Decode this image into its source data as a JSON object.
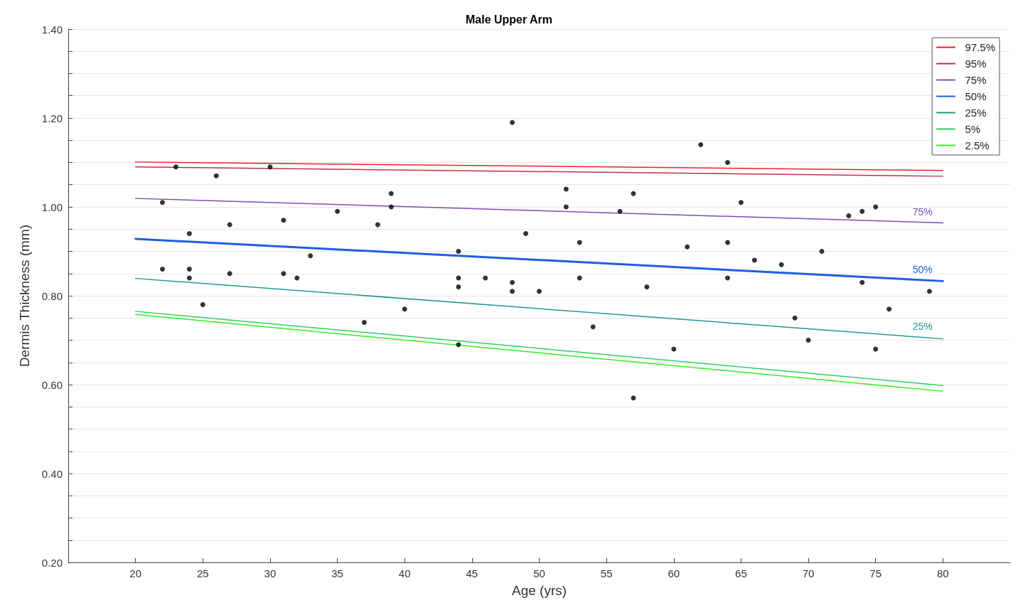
{
  "chart_data": {
    "type": "line",
    "title": "Male Upper Arm",
    "xlabel": "Age (yrs)",
    "ylabel": "Dermis Thickness (mm)",
    "xlim": [
      15,
      85
    ],
    "xticks": [
      20,
      25,
      30,
      35,
      40,
      45,
      50,
      55,
      60,
      65,
      70,
      75,
      80
    ],
    "ylim": [
      0.2,
      1.4
    ],
    "yticks": [
      {
        "value": 0.2,
        "label": "0.20"
      },
      {
        "value": 0.25,
        "label": null
      },
      {
        "value": 0.3,
        "label": null
      },
      {
        "value": 0.35,
        "label": null
      },
      {
        "value": 0.4,
        "label": "0.40"
      },
      {
        "value": 0.45,
        "label": null
      },
      {
        "value": 0.5,
        "label": null
      },
      {
        "value": 0.55,
        "label": null
      },
      {
        "value": 0.6,
        "label": "0.60"
      },
      {
        "value": 0.65,
        "label": null
      },
      {
        "value": 0.7,
        "label": null
      },
      {
        "value": 0.75,
        "label": null
      },
      {
        "value": 0.8,
        "label": "0.80"
      },
      {
        "value": 0.85,
        "label": null
      },
      {
        "value": 0.9,
        "label": null
      },
      {
        "value": 0.95,
        "label": null
      },
      {
        "value": 1.0,
        "label": "1.00"
      },
      {
        "value": 1.05,
        "label": null
      },
      {
        "value": 1.1,
        "label": null
      },
      {
        "value": 1.15,
        "label": null
      },
      {
        "value": 1.2,
        "label": "1.20"
      },
      {
        "value": 1.25,
        "label": null
      },
      {
        "value": 1.3,
        "label": null
      },
      {
        "value": 1.35,
        "label": null
      },
      {
        "value": 1.4,
        "label": "1.40"
      }
    ],
    "grid": "y",
    "legend": "top right",
    "marker": "none",
    "line_style": "solid",
    "series": [
      {
        "name": "97.5%",
        "color": "#e8222a",
        "x": [
          20,
          80
        ],
        "values": [
          1.101,
          1.082
        ]
      },
      {
        "name": "95%",
        "color": "#c0304e",
        "x": [
          20,
          80
        ],
        "values": [
          1.09,
          1.069
        ]
      },
      {
        "name": "75%",
        "color": "#7e4fb0",
        "x": [
          20,
          80
        ],
        "values": [
          1.019,
          0.964
        ]
      },
      {
        "name": "50%",
        "color": "#1e5ee6",
        "x": [
          20,
          80
        ],
        "values": [
          0.928,
          0.833
        ]
      },
      {
        "name": "25%",
        "color": "#22998e",
        "x": [
          20,
          80
        ],
        "values": [
          0.839,
          0.703
        ]
      },
      {
        "name": "5%",
        "color": "#33cc66",
        "x": [
          20,
          80
        ],
        "values": [
          0.765,
          0.598
        ]
      },
      {
        "name": "2.5%",
        "color": "#33ee22",
        "x": [
          20,
          80
        ],
        "values": [
          0.758,
          0.585
        ]
      },
      {
        "type": "scatter",
        "marker": "circle",
        "color": "#000000",
        "x": [
          22,
          23,
          22,
          24,
          24,
          24,
          26,
          25,
          27,
          27,
          30,
          31,
          31,
          32,
          33,
          35,
          37,
          38,
          39,
          39,
          40,
          44,
          44,
          44,
          44,
          46,
          48,
          48,
          48,
          49,
          50,
          52,
          52,
          53,
          53,
          54,
          56,
          57,
          57,
          58,
          60,
          61,
          62,
          64,
          64,
          64,
          65,
          66,
          68,
          69,
          70,
          71,
          73,
          74,
          74,
          75,
          75,
          76,
          79
        ],
        "values": [
          1.01,
          1.09,
          0.86,
          0.94,
          0.86,
          0.84,
          1.07,
          0.78,
          0.96,
          0.85,
          1.09,
          0.97,
          0.85,
          0.84,
          0.89,
          0.99,
          0.74,
          0.96,
          1.03,
          1.0,
          0.77,
          0.9,
          0.84,
          0.82,
          0.69,
          0.84,
          1.19,
          0.83,
          0.81,
          0.94,
          0.81,
          1.04,
          1.0,
          0.92,
          0.84,
          0.73,
          0.99,
          1.03,
          0.57,
          0.82,
          0.68,
          0.91,
          1.14,
          1.1,
          0.92,
          0.84,
          1.01,
          0.88,
          0.87,
          0.75,
          0.7,
          0.9,
          0.98,
          0.99,
          0.83,
          1.0,
          0.68,
          0.77,
          0.81
        ]
      }
    ],
    "annotations": [
      "75%",
      "50%",
      "25%"
    ]
  }
}
